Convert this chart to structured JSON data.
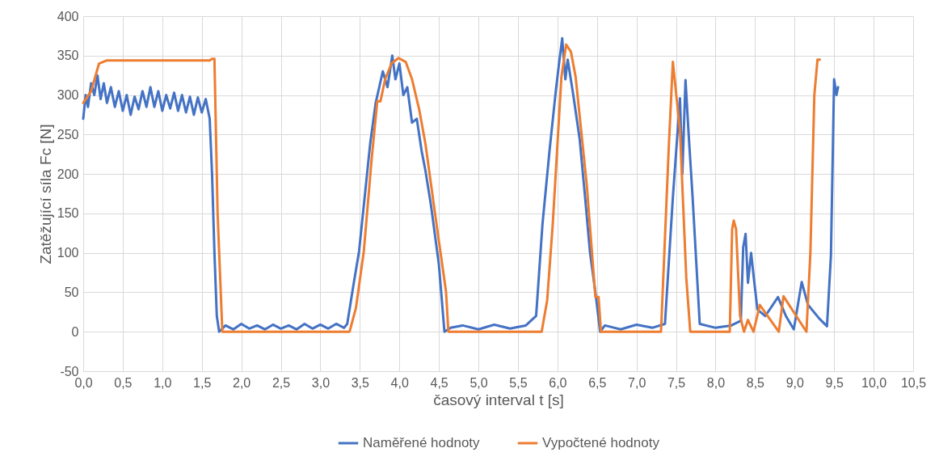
{
  "chart_data": {
    "type": "line",
    "xlabel": "časový interval t [s]",
    "ylabel": "Zatěžující síla Fc [N]",
    "xlim": [
      0,
      10.5
    ],
    "xticks": [
      {
        "value": 0,
        "label": "0,0"
      },
      {
        "value": 0.5,
        "label": "0,5"
      },
      {
        "value": 1,
        "label": "1,0"
      },
      {
        "value": 1.5,
        "label": "1,5"
      },
      {
        "value": 2,
        "label": "2,0"
      },
      {
        "value": 2.5,
        "label": "2,5"
      },
      {
        "value": 3,
        "label": "3,0"
      },
      {
        "value": 3.5,
        "label": "3,5"
      },
      {
        "value": 4,
        "label": "4,0"
      },
      {
        "value": 4.5,
        "label": "4,5"
      },
      {
        "value": 5,
        "label": "5,0"
      },
      {
        "value": 5.5,
        "label": "5,5"
      },
      {
        "value": 6,
        "label": "6,0"
      },
      {
        "value": 6.5,
        "label": "6,5"
      },
      {
        "value": 7,
        "label": "7,0"
      },
      {
        "value": 7.5,
        "label": "7,5"
      },
      {
        "value": 8,
        "label": "8,0"
      },
      {
        "value": 8.5,
        "label": "8,5"
      },
      {
        "value": 9,
        "label": "9,0"
      },
      {
        "value": 9.5,
        "label": "9,5"
      },
      {
        "value": 10,
        "label": "10,0"
      },
      {
        "value": 10.5,
        "label": "10,5"
      }
    ],
    "ylim": [
      -50,
      400
    ],
    "yticks": [
      -50,
      0,
      50,
      100,
      150,
      200,
      250,
      300,
      350,
      400
    ],
    "grid": true,
    "legend": "bottom",
    "series": [
      {
        "name": "Naměřené hodnoty",
        "color": "#4472c4",
        "x": [
          0,
          0.03,
          0.06,
          0.1,
          0.14,
          0.18,
          0.22,
          0.26,
          0.3,
          0.35,
          0.4,
          0.45,
          0.5,
          0.55,
          0.6,
          0.65,
          0.7,
          0.75,
          0.8,
          0.85,
          0.9,
          0.95,
          1.0,
          1.05,
          1.1,
          1.15,
          1.2,
          1.25,
          1.3,
          1.35,
          1.4,
          1.45,
          1.5,
          1.55,
          1.6,
          1.63,
          1.66,
          1.69,
          1.72,
          1.8,
          1.9,
          2.0,
          2.1,
          2.2,
          2.3,
          2.4,
          2.5,
          2.6,
          2.7,
          2.8,
          2.9,
          3.0,
          3.1,
          3.2,
          3.3,
          3.34,
          3.42,
          3.49,
          3.56,
          3.63,
          3.7,
          3.79,
          3.85,
          3.91,
          3.95,
          4.0,
          4.05,
          4.1,
          4.16,
          4.22,
          4.28,
          4.33,
          4.4,
          4.5,
          4.57,
          4.65,
          4.8,
          5.0,
          5.2,
          5.4,
          5.6,
          5.73,
          5.81,
          5.9,
          5.98,
          6.02,
          6.06,
          6.1,
          6.13,
          6.2,
          6.28,
          6.35,
          6.41,
          6.48,
          6.54,
          6.6,
          6.8,
          7.0,
          7.2,
          7.36,
          7.46,
          7.55,
          7.58,
          7.62,
          7.66,
          7.71,
          7.8,
          8.0,
          8.2,
          8.32,
          8.35,
          8.38,
          8.41,
          8.45,
          8.48,
          8.53,
          8.63,
          8.79,
          8.89,
          8.99,
          9.09,
          9.17,
          9.31,
          9.41,
          9.46,
          9.5,
          9.53,
          9.55
        ],
        "values": [
          270,
          300,
          285,
          315,
          300,
          325,
          295,
          315,
          290,
          310,
          285,
          305,
          280,
          300,
          275,
          298,
          282,
          305,
          285,
          310,
          285,
          305,
          280,
          300,
          283,
          303,
          280,
          300,
          278,
          298,
          275,
          297,
          278,
          295,
          270,
          200,
          100,
          20,
          0,
          8,
          3,
          10,
          4,
          8,
          3,
          9,
          4,
          8,
          3,
          10,
          4,
          9,
          4,
          10,
          5,
          10,
          60,
          102,
          170,
          238,
          290,
          330,
          310,
          350,
          320,
          340,
          300,
          310,
          265,
          270,
          230,
          204,
          160,
          85,
          0,
          5,
          8,
          3,
          9,
          4,
          8,
          20,
          136,
          230,
          306,
          340,
          372,
          320,
          345,
          300,
          245,
          170,
          102,
          50,
          0,
          8,
          3,
          9,
          5,
          10,
          170,
          296,
          200,
          319,
          250,
          170,
          10,
          5,
          8,
          14,
          107,
          124,
          62,
          100,
          72,
          28,
          20,
          44,
          20,
          3,
          63,
          34,
          17,
          7,
          97,
          320,
          300,
          310
        ]
      },
      {
        "name": "Vypočtené hodnoty",
        "color": "#ed7d31",
        "x": [
          0,
          0.1,
          0.2,
          0.3,
          1.0,
          1.6,
          1.63,
          1.66,
          1.7,
          1.76,
          2.5,
          3.37,
          3.45,
          3.55,
          3.65,
          3.72,
          3.76,
          3.82,
          3.9,
          3.99,
          4.08,
          4.16,
          4.25,
          4.33,
          4.47,
          4.59,
          4.62,
          5.0,
          5.8,
          5.87,
          5.94,
          6.05,
          6.11,
          6.17,
          6.23,
          6.37,
          6.48,
          6.52,
          6.55,
          7.0,
          7.31,
          7.41,
          7.46,
          7.55,
          7.63,
          7.68,
          8.18,
          8.21,
          8.23,
          8.26,
          8.31,
          8.36,
          8.41,
          8.48,
          8.56,
          8.8,
          8.86,
          9.15,
          9.2,
          9.25,
          9.29,
          9.32
        ],
        "values": [
          290,
          305,
          340,
          344,
          344,
          344,
          346,
          346,
          150,
          0,
          0,
          0,
          30,
          102,
          220,
          292,
          292,
          320,
          340,
          347,
          342,
          320,
          282,
          238,
          136,
          51,
          0,
          0,
          0,
          40,
          136,
          323,
          364,
          355,
          323,
          187,
          44,
          44,
          0,
          0,
          0,
          238,
          342,
          255,
          68,
          0,
          0,
          130,
          141,
          130,
          20,
          0,
          15,
          0,
          34,
          0,
          45,
          0,
          100,
          300,
          345,
          345
        ]
      }
    ]
  }
}
